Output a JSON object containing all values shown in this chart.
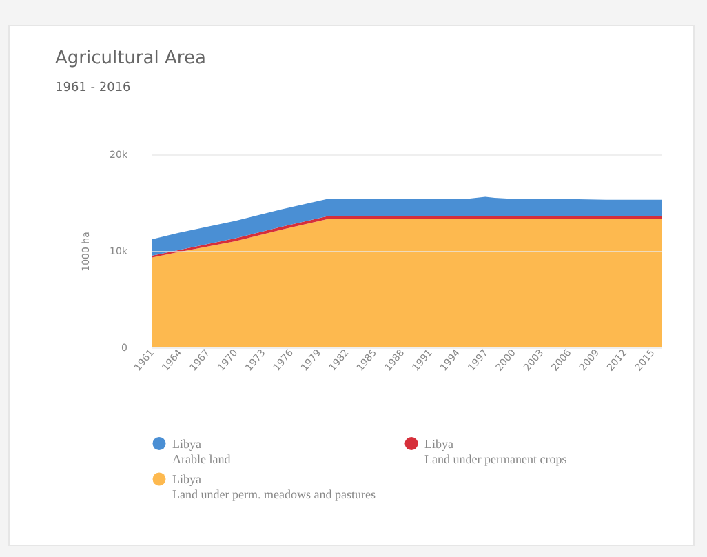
{
  "chart_data": {
    "type": "area",
    "title": "Agricultural Area",
    "subtitle": "1961 - 2016",
    "ylabel": "1000 ha",
    "stacked": true,
    "x": [
      1961,
      1964,
      1970,
      1975,
      1980,
      1982,
      1985,
      1990,
      1995,
      1997,
      1998,
      2000,
      2005,
      2010,
      2016
    ],
    "series": [
      {
        "name": "Libya\nLand under perm. meadows and pastures",
        "color": "#fdb94f",
        "values": [
          9300,
          9900,
          11000,
          12200,
          13300,
          13300,
          13300,
          13300,
          13300,
          13300,
          13300,
          13300,
          13300,
          13300,
          13300
        ]
      },
      {
        "name": "Libya\nLand under permanent crops",
        "color": "#d62f3a",
        "values": [
          200,
          200,
          300,
          300,
          300,
          300,
          300,
          300,
          300,
          300,
          300,
          300,
          300,
          300,
          300
        ]
      },
      {
        "name": "Libya\nArable land",
        "color": "#4a8fd4",
        "values": [
          1700,
          1800,
          1800,
          1800,
          1800,
          1800,
          1800,
          1800,
          1800,
          2000,
          1900,
          1800,
          1800,
          1700,
          1700
        ]
      }
    ],
    "xlim": [
      1961,
      2016
    ],
    "xticks": [
      1961,
      1964,
      1967,
      1970,
      1973,
      1976,
      1979,
      1982,
      1985,
      1988,
      1991,
      1994,
      1997,
      2000,
      2003,
      2006,
      2009,
      2012,
      2015
    ],
    "ylim": [
      0,
      20000
    ],
    "yticks": [
      {
        "value": 0,
        "label": "0"
      },
      {
        "value": 10000,
        "label": "10k"
      },
      {
        "value": 20000,
        "label": "20k"
      }
    ],
    "grid": "y",
    "legend": "bottom"
  }
}
